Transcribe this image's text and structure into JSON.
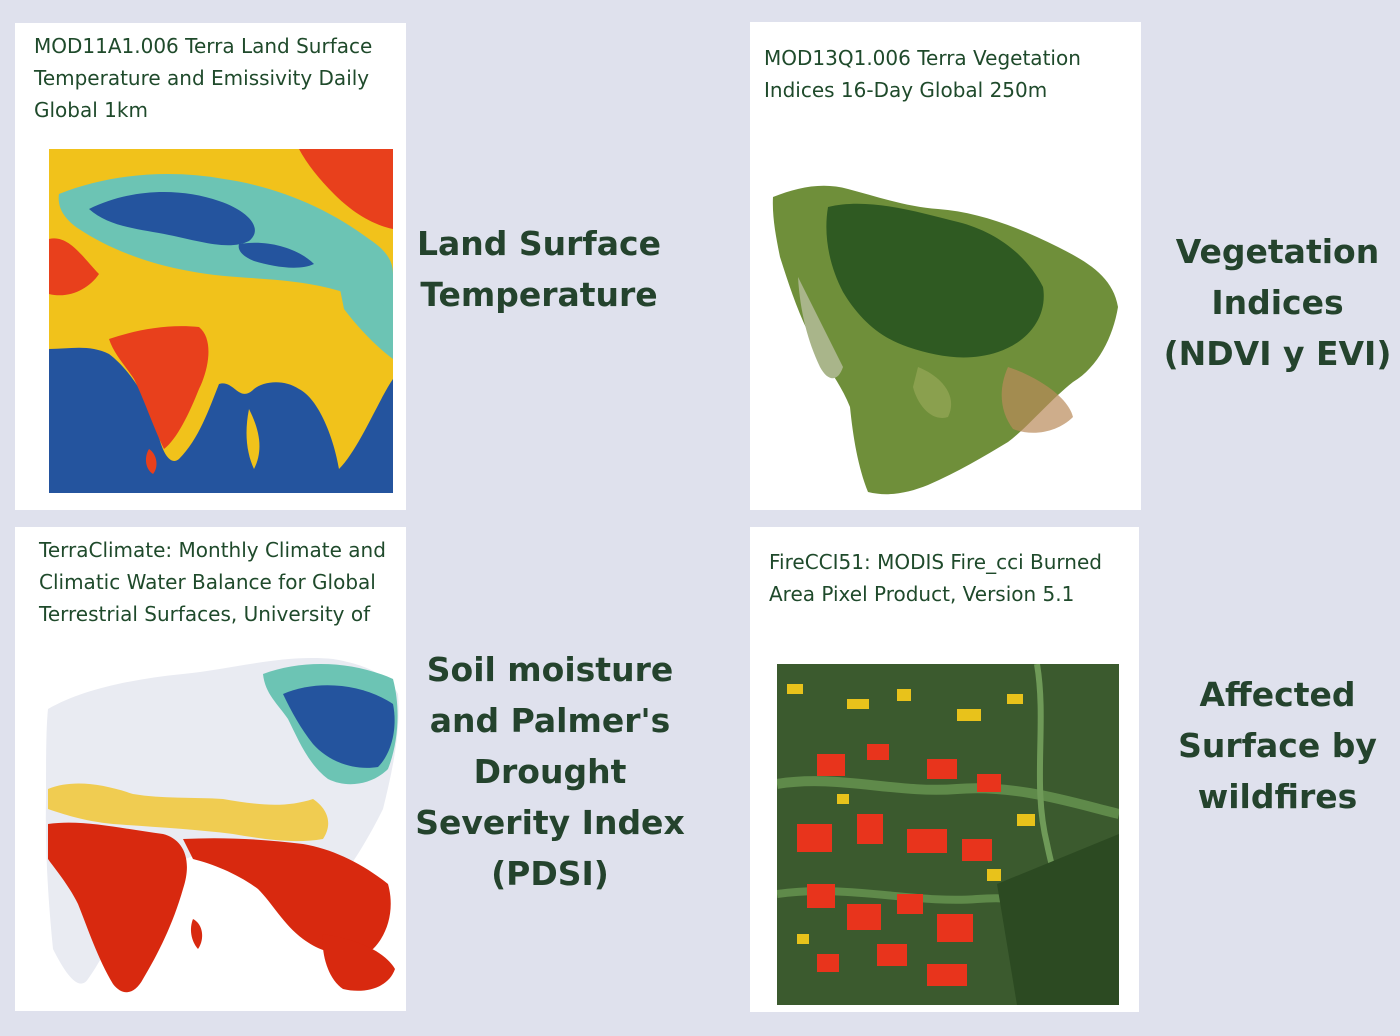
{
  "panels": [
    {
      "card_title_lines": [
        "MOD11A1.006 Terra Land Surface",
        "Temperature and Emissivity Daily",
        "Global 1km"
      ],
      "label_lines": [
        "Land Surface",
        "Temperature"
      ],
      "map_icon": "land-surface-temperature-map-south-asia",
      "colors": [
        "#f1c21b",
        "#e8401c",
        "#6cc4b4",
        "#24549e"
      ]
    },
    {
      "card_title_lines": [
        "MOD13Q1.006 Terra Vegetation",
        "Indices 16-Day Global 250m"
      ],
      "label_lines": [
        "Vegetation",
        "Indices",
        "(NDVI y EVI)"
      ],
      "map_icon": "vegetation-indices-map-south-america",
      "colors": [
        "#6f8f3a",
        "#2f5a22",
        "#b98a5a"
      ]
    },
    {
      "card_title_lines": [
        "TerraClimate: Monthly Climate and",
        "Climatic Water Balance for Global",
        "Terrestrial Surfaces, University of"
      ],
      "label_lines": [
        "Soil moisture",
        "and Palmer's",
        "Drought",
        "Severity Index",
        "(PDSI)"
      ],
      "map_icon": "pdsi-map-eastern-hemisphere",
      "colors": [
        "#d8290f",
        "#f1c21b",
        "#e9ebf2",
        "#6cc4b4",
        "#24549e"
      ]
    },
    {
      "card_title_lines": [
        "FireCCI51: MODIS Fire_cci Burned",
        "Area Pixel Product, Version 5.1"
      ],
      "label_lines": [
        "Affected",
        "Surface by",
        "wildfires"
      ],
      "map_icon": "burned-area-map",
      "colors": [
        "#3b5a2e",
        "#e8341c",
        "#e8c21b"
      ]
    }
  ]
}
